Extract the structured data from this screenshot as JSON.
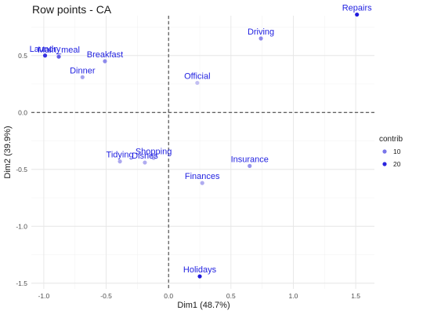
{
  "chart_data": {
    "type": "scatter",
    "title": "Row points - CA",
    "xlabel": "Dim1 (48.7%)",
    "ylabel": "Dim2 (39.9%)",
    "xlim": [
      -1.1,
      1.65
    ],
    "ylim": [
      -1.55,
      0.85
    ],
    "xticks": [
      -1.0,
      -0.5,
      0.0,
      0.5,
      1.0,
      1.5
    ],
    "xtick_labels": [
      "-1.0",
      "-0.5",
      "0.0",
      "0.5",
      "1.0",
      "1.5"
    ],
    "yticks": [
      -1.5,
      -1.0,
      -0.5,
      0.0,
      0.5
    ],
    "ytick_labels": [
      "-1.5",
      "-1.0",
      "-0.5",
      "0.0",
      "0.5"
    ],
    "reference_lines": {
      "x": 0,
      "y": 0,
      "style": "dashed"
    },
    "grid": true,
    "color_low": "#c9c6f3",
    "color_high": "#1a14dc",
    "label_color": "#1f1fe0",
    "contrib_range": [
      0,
      22
    ],
    "points": [
      {
        "name": "Laundry",
        "x": -0.99,
        "y": 0.5,
        "contrib": 18.3
      },
      {
        "name": "Main_meal",
        "x": -0.88,
        "y": 0.49,
        "contrib": 12.7
      },
      {
        "name": "Dinner",
        "x": -0.69,
        "y": 0.31,
        "contrib": 4.5
      },
      {
        "name": "Breakfast",
        "x": -0.51,
        "y": 0.45,
        "contrib": 7.4
      },
      {
        "name": "Tidying",
        "x": -0.39,
        "y": -0.43,
        "contrib": 3.7
      },
      {
        "name": "Dishes",
        "x": -0.19,
        "y": -0.44,
        "contrib": 3.2
      },
      {
        "name": "Shopping",
        "x": -0.12,
        "y": -0.4,
        "contrib": 1.9
      },
      {
        "name": "Official",
        "x": 0.23,
        "y": 0.26,
        "contrib": 0.9
      },
      {
        "name": "Driving",
        "x": 0.74,
        "y": 0.65,
        "contrib": 7.6
      },
      {
        "name": "Finances",
        "x": 0.27,
        "y": -0.62,
        "contrib": 3.3
      },
      {
        "name": "Insurance",
        "x": 0.65,
        "y": -0.47,
        "contrib": 6.1
      },
      {
        "name": "Repairs",
        "x": 1.51,
        "y": 0.86,
        "contrib": 21.3
      },
      {
        "name": "Holidays",
        "x": 0.25,
        "y": -1.44,
        "contrib": 21.2
      }
    ],
    "display_labels": {
      "Laundry": "Laundry",
      "Main_meal": "Main_meal",
      "Dinner": "Dinner",
      "Breakfast": "Breakfast",
      "Tidying": "Tidying",
      "Dishes": "Dishes",
      "Shopping": "Shopping",
      "Official": "Official",
      "Driving": "Driving",
      "Finances": "Finances",
      "Insurance": "Insurance",
      "Repairs": "Repairs",
      "Holidays": "Holidays"
    },
    "legend": {
      "title": "contrib",
      "entries": [
        {
          "label": "10",
          "value": 10
        },
        {
          "label": "20",
          "value": 20
        }
      ],
      "position": "right"
    }
  }
}
